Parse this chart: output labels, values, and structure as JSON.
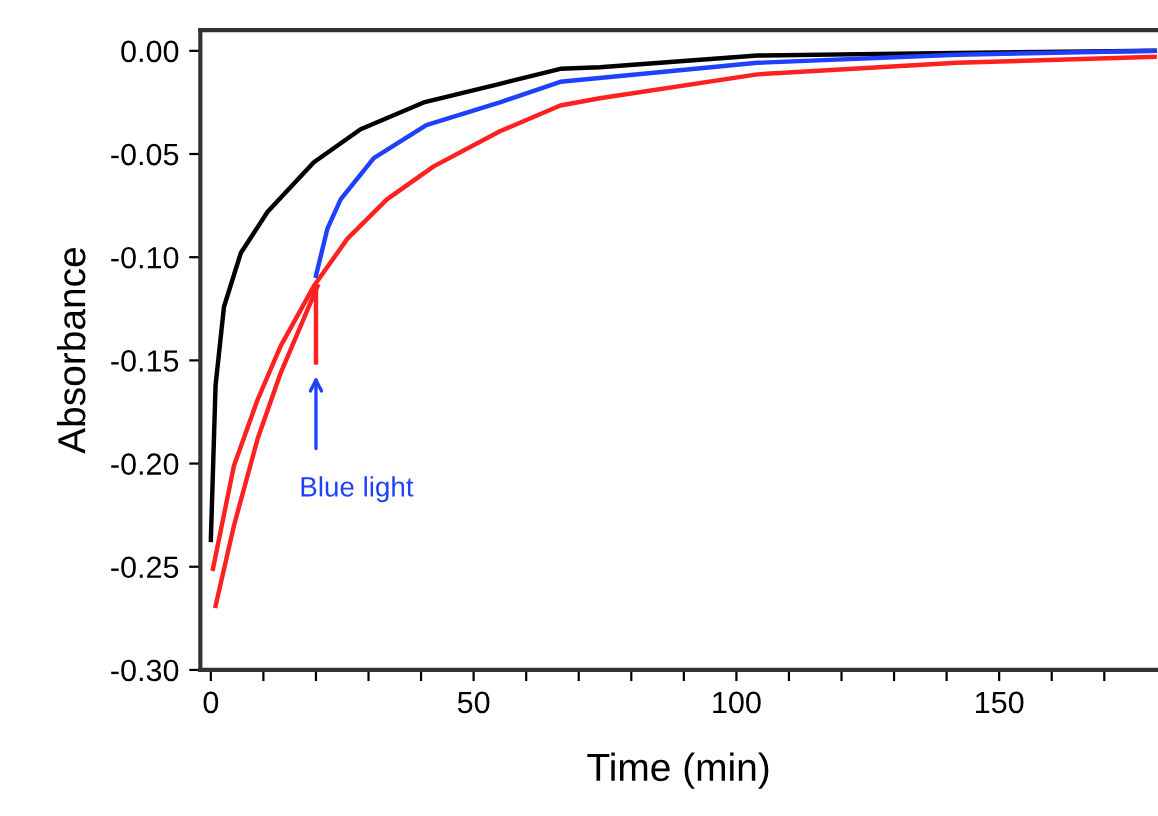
{
  "chart_data": {
    "type": "line",
    "xlabel": "Time (min)",
    "ylabel": "Absorbance",
    "xlim": [
      -2,
      180
    ],
    "ylim": [
      -0.3,
      0.01
    ],
    "xticks": [
      0,
      {
        "value": 10,
        "label": null
      },
      {
        "value": 20,
        "label": null
      },
      {
        "value": 30,
        "label": null
      },
      {
        "value": 40,
        "label": null
      },
      50,
      {
        "value": 60,
        "label": null
      },
      {
        "value": 70,
        "label": null
      },
      {
        "value": 80,
        "label": null
      },
      {
        "value": 90,
        "label": null
      },
      100,
      {
        "value": 110,
        "label": null
      },
      {
        "value": 120,
        "label": null
      },
      {
        "value": 130,
        "label": null
      },
      {
        "value": 140,
        "label": null
      },
      150,
      {
        "value": 160,
        "label": null
      },
      {
        "value": 170,
        "label": null
      }
    ],
    "yticks": [
      {
        "value": 0.0,
        "label": "0.00"
      },
      {
        "value": -0.05,
        "label": "-0.05"
      },
      {
        "value": -0.1,
        "label": "-0.10"
      },
      {
        "value": -0.15,
        "label": "-0.15"
      },
      {
        "value": -0.2,
        "label": "-0.20"
      },
      {
        "value": -0.25,
        "label": "-0.25"
      },
      {
        "value": -0.3,
        "label": "-0.30"
      }
    ],
    "grid": false,
    "legend": false,
    "marker": "none",
    "line_style": "solid",
    "series": [
      {
        "color": "#000000",
        "x": [
          0,
          0.9,
          2.5,
          5.7,
          10.8,
          19.6,
          28.5,
          40.5,
          55,
          66.5,
          74,
          104,
          142,
          180
        ],
        "values": [
          -0.237,
          -0.162,
          -0.124,
          -0.098,
          -0.078,
          -0.054,
          -0.038,
          -0.025,
          -0.016,
          -0.0087,
          -0.008,
          -0.0023,
          -0.001,
          0.0
        ]
      },
      {
        "color": "#ff2020",
        "x": [
          0.4,
          4.4,
          8.9,
          13.3,
          19.6,
          26,
          33.5,
          42.4,
          55,
          66.5,
          74,
          104,
          142,
          180
        ],
        "values": [
          -0.251,
          -0.201,
          -0.169,
          -0.143,
          -0.114,
          -0.091,
          -0.072,
          -0.056,
          -0.039,
          -0.0265,
          -0.023,
          -0.0114,
          -0.0058,
          -0.0029
        ]
      },
      {
        "color": "#ff2020",
        "x": [
          0.9,
          4.4,
          8.9,
          13.3,
          20.3
        ],
        "values": [
          -0.269,
          -0.23,
          -0.188,
          -0.156,
          -0.114
        ]
      },
      {
        "color": "#ff2020",
        "x": [
          20,
          20
        ],
        "values": [
          -0.114,
          -0.151
        ]
      },
      {
        "color": "#2040ff",
        "x": [
          20,
          22.2,
          24.7,
          31,
          41,
          55,
          66.5,
          104,
          142,
          180
        ],
        "values": [
          -0.109,
          -0.086,
          -0.072,
          -0.052,
          -0.036,
          -0.025,
          -0.015,
          -0.0058,
          -0.0019,
          0.0
        ]
      }
    ],
    "annotations": [
      {
        "text": "Blue light",
        "x": 20,
        "y": -0.155
      }
    ]
  }
}
